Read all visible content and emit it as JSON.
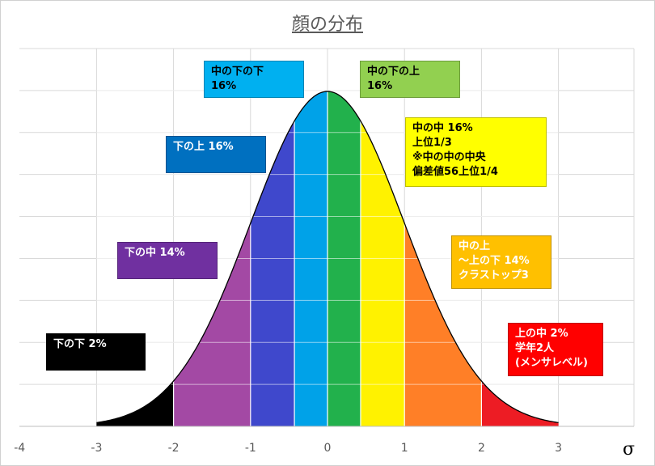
{
  "chart_data": {
    "type": "area",
    "title": "顔の分布",
    "xlabel": "σ",
    "ylabel": "",
    "xlim": [
      -4,
      3.5
    ],
    "x_ticks": [
      "-4",
      "-3",
      "-2",
      "-1",
      "0",
      "1",
      "2",
      "3"
    ],
    "curve": "normal distribution, mean 0, sd 1",
    "grid": true,
    "bands": [
      {
        "from": -3.0,
        "to": -2.0,
        "color": "#000000"
      },
      {
        "from": -2.0,
        "to": -1.0,
        "color": "#a349a4"
      },
      {
        "from": -1.0,
        "to": -0.43,
        "color": "#3f48cc"
      },
      {
        "from": -0.43,
        "to": 0.0,
        "color": "#00a2e8"
      },
      {
        "from": 0.0,
        "to": 0.43,
        "color": "#22b14c"
      },
      {
        "from": 0.43,
        "to": 1.0,
        "color": "#fff200"
      },
      {
        "from": 1.0,
        "to": 2.0,
        "color": "#ff7f27"
      },
      {
        "from": 2.0,
        "to": 3.0,
        "color": "#ed1c24"
      }
    ],
    "annotations": [
      {
        "id": "ann-lower-lower",
        "lines": [
          "下の下 2%"
        ],
        "bg": "#000000",
        "fg": "#ffffff"
      },
      {
        "id": "ann-lower-middle",
        "lines": [
          "下の中 14%"
        ],
        "bg": "#7030a0",
        "fg": "#ffffff"
      },
      {
        "id": "ann-lower-upper",
        "lines": [
          "下の上 16%"
        ],
        "bg": "#0070c0",
        "fg": "#ffffff"
      },
      {
        "id": "ann-middle-lower-lower",
        "lines": [
          "中の下の下",
          "16%"
        ],
        "bg": "#00b0f0",
        "fg": "#000000"
      },
      {
        "id": "ann-middle-lower-upper",
        "lines": [
          "中の下の上",
          "16%"
        ],
        "bg": "#92d050",
        "fg": "#000000"
      },
      {
        "id": "ann-middle-middle",
        "lines": [
          "中の中 16%",
          "上位1/3",
          "※中の中の中央",
          "偏差値56上位1/4"
        ],
        "bg": "#ffff00",
        "fg": "#000000"
      },
      {
        "id": "ann-middle-upper",
        "lines": [
          "中の上",
          "～上の下 14%",
          "クラストップ3"
        ],
        "bg": "#ffc000",
        "fg": "#ffffff"
      },
      {
        "id": "ann-upper-middle",
        "lines": [
          "上の中 2%",
          "学年2人",
          "(メンサレベル)"
        ],
        "bg": "#ff0000",
        "fg": "#ffffff"
      }
    ]
  }
}
